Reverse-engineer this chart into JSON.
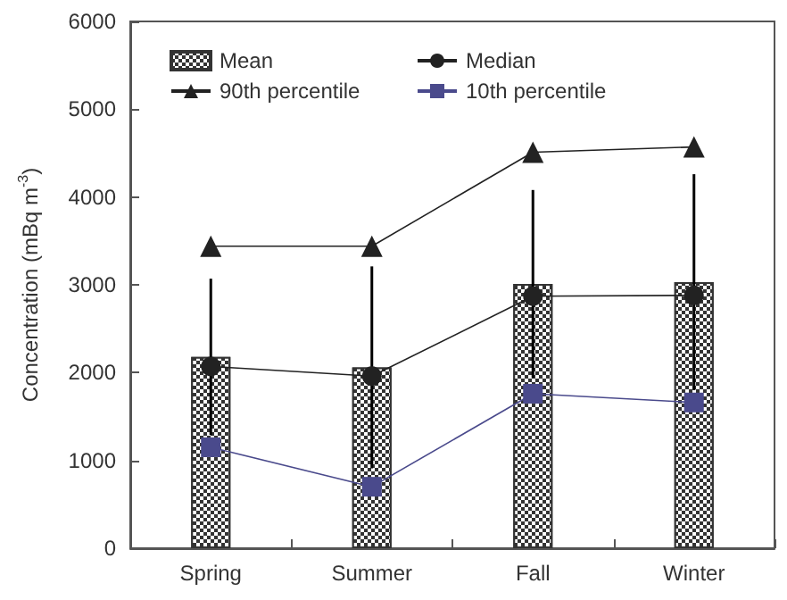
{
  "chart_data": {
    "type": "bar",
    "ylabel": "Concentration (mBq m$^{-3}$)",
    "categories": [
      "Spring",
      "Summer",
      "Fall",
      "Winter"
    ],
    "series": [
      {
        "name": "Mean",
        "color": "#333333",
        "values": [
          2180,
          2060,
          3010,
          3030
        ],
        "errors": [
          890,
          1150,
          1070,
          1230
        ]
      },
      {
        "name": "Median",
        "type": "line",
        "marker": "circle",
        "color": "#222222",
        "values": [
          2070,
          1960,
          2870,
          2880
        ]
      },
      {
        "name": "90th percentile",
        "type": "line",
        "marker": "triangle",
        "color": "#222222",
        "values": [
          3440,
          3440,
          4510,
          4570
        ]
      },
      {
        "name": "10th percentile",
        "type": "line",
        "marker": "square",
        "color": "#4a4a8c",
        "values": [
          1150,
          700,
          1760,
          1660
        ]
      }
    ],
    "ylim": [
      0,
      6000
    ],
    "yticks": [
      0,
      1000,
      2000,
      3000,
      4000,
      5000,
      6000
    ],
    "grid": false,
    "legend": "top left"
  }
}
